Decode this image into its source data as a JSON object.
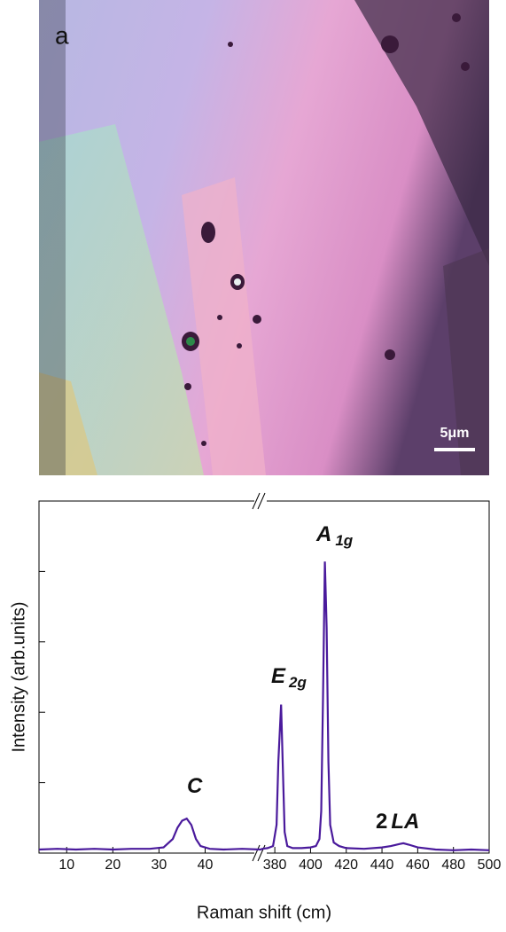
{
  "panel_label": "a",
  "scale_bar": "5μm",
  "chart_data": {
    "type": "line",
    "xlabel": "Raman shift (cm)",
    "ylabel": "Intensity (arb.units)",
    "xlim": [
      4,
      52
    ],
    "xticks": [
      10,
      20,
      30,
      40
    ],
    "x2lim": [
      373,
      500
    ],
    "x2ticks": [
      380,
      400,
      420,
      440,
      460,
      480,
      500
    ],
    "ylim": [
      0,
      5
    ],
    "yticks": [
      1,
      2,
      3,
      4
    ],
    "annotations": [
      {
        "label": "C"
      },
      {
        "label": "E",
        "subscript": "2g"
      },
      {
        "label": "A",
        "subscript": "1g"
      },
      {
        "label": "2",
        "subscript": "LA"
      }
    ],
    "series": [
      {
        "color": "#4a1a9c",
        "x": [
          4,
          8,
          12,
          16,
          20,
          24,
          28,
          31,
          33,
          34,
          35,
          36,
          37,
          38,
          39,
          41,
          44,
          48,
          52,
          373,
          376,
          379,
          381,
          382,
          383.5,
          384.5,
          385.5,
          387,
          390,
          395,
          400,
          403,
          405,
          406,
          407,
          408,
          409,
          410,
          411,
          413,
          416,
          420,
          430,
          440,
          445,
          450,
          452,
          455,
          460,
          470,
          480,
          490,
          500
        ],
        "values": [
          0.05,
          0.06,
          0.05,
          0.06,
          0.05,
          0.06,
          0.06,
          0.08,
          0.2,
          0.36,
          0.46,
          0.49,
          0.4,
          0.2,
          0.1,
          0.06,
          0.05,
          0.06,
          0.05,
          0.06,
          0.07,
          0.1,
          0.4,
          1.3,
          2.11,
          1.2,
          0.3,
          0.1,
          0.07,
          0.07,
          0.08,
          0.1,
          0.2,
          0.6,
          2.2,
          4.14,
          3.2,
          1.3,
          0.4,
          0.15,
          0.1,
          0.07,
          0.06,
          0.08,
          0.1,
          0.13,
          0.14,
          0.12,
          0.08,
          0.05,
          0.04,
          0.05,
          0.04
        ]
      }
    ]
  }
}
